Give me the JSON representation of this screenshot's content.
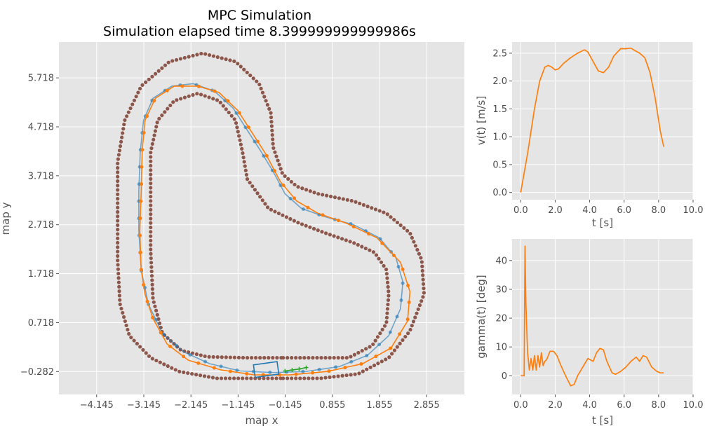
{
  "chart_data": [
    {
      "type": "line",
      "title": "MPC Simulation",
      "subtitle": "Simulation elapsed time 8.399999999999986s",
      "xlabel": "map x",
      "ylabel": "map y",
      "xlim": [
        -4.945,
        3.655
      ],
      "ylim": [
        -0.75,
        6.45
      ],
      "xticks": [
        -4.145,
        -3.145,
        -2.145,
        -1.145,
        -0.145,
        0.855,
        1.855,
        2.855
      ],
      "yticks": [
        -0.282,
        0.718,
        1.718,
        2.718,
        3.718,
        4.718,
        5.718
      ],
      "xtick_labels": [
        "−4.145",
        "−3.145",
        "−2.145",
        "−1.145",
        "−0.145",
        "0.855",
        "1.855",
        "2.855"
      ],
      "ytick_labels": [
        "−0.282",
        "0.718",
        "1.718",
        "2.718",
        "3.718",
        "4.718",
        "5.718"
      ],
      "grid": true,
      "colors": {
        "boundary": "#8c564b",
        "reference": "#1f77b4",
        "trajectory": "#ff7f0e",
        "prediction": "#2ca02c",
        "vehicle": "#1f77b4"
      },
      "series": [
        {
          "role": "outer-boundary",
          "style": "dots",
          "points": [
            [
              -0.19,
              -0.42
            ],
            [
              0.6,
              -0.42
            ],
            [
              1.4,
              -0.33
            ],
            [
              2.05,
              0.0
            ],
            [
              2.5,
              0.55
            ],
            [
              2.8,
              1.3
            ],
            [
              2.75,
              2.0
            ],
            [
              2.5,
              2.55
            ],
            [
              2.0,
              2.95
            ],
            [
              1.3,
              3.2
            ],
            [
              0.55,
              3.35
            ],
            [
              0.1,
              3.5
            ],
            [
              -0.2,
              3.75
            ],
            [
              -0.4,
              4.3
            ],
            [
              -0.45,
              5.0
            ],
            [
              -0.7,
              5.6
            ],
            [
              -1.2,
              6.05
            ],
            [
              -1.9,
              6.22
            ],
            [
              -2.6,
              6.05
            ],
            [
              -3.2,
              5.55
            ],
            [
              -3.55,
              4.85
            ],
            [
              -3.7,
              4.0
            ],
            [
              -3.7,
              3.0
            ],
            [
              -3.7,
              2.0
            ],
            [
              -3.65,
              1.1
            ],
            [
              -3.45,
              0.45
            ],
            [
              -3.0,
              0.0
            ],
            [
              -2.4,
              -0.28
            ],
            [
              -1.6,
              -0.42
            ],
            [
              -0.9,
              -0.42
            ],
            [
              -0.19,
              -0.42
            ]
          ]
        },
        {
          "role": "inner-boundary",
          "style": "dots",
          "points": [
            [
              -0.19,
              0.0
            ],
            [
              0.4,
              0.0
            ],
            [
              1.2,
              0.0
            ],
            [
              1.7,
              0.25
            ],
            [
              2.0,
              0.7
            ],
            [
              2.05,
              1.3
            ],
            [
              2.0,
              1.8
            ],
            [
              1.75,
              2.15
            ],
            [
              1.3,
              2.35
            ],
            [
              0.7,
              2.55
            ],
            [
              0.15,
              2.75
            ],
            [
              -0.5,
              3.05
            ],
            [
              -0.95,
              3.65
            ],
            [
              -1.05,
              4.2
            ],
            [
              -1.2,
              4.85
            ],
            [
              -1.55,
              5.25
            ],
            [
              -2.0,
              5.4
            ],
            [
              -2.5,
              5.25
            ],
            [
              -2.85,
              4.85
            ],
            [
              -3.0,
              4.2
            ],
            [
              -3.0,
              3.2
            ],
            [
              -3.0,
              2.2
            ],
            [
              -2.95,
              1.2
            ],
            [
              -2.75,
              0.5
            ],
            [
              -2.35,
              0.15
            ],
            [
              -1.8,
              0.02
            ],
            [
              -1.0,
              0.0
            ],
            [
              -0.19,
              0.0
            ]
          ]
        },
        {
          "name": "",
          "role": "reference-path",
          "style": "line+dots",
          "points": [
            [
              -3.2,
              1.8
            ],
            [
              -3.25,
              2.6
            ],
            [
              -3.25,
              3.4
            ],
            [
              -3.22,
              4.2
            ],
            [
              -3.15,
              4.85
            ],
            [
              -2.95,
              5.3
            ],
            [
              -2.55,
              5.55
            ],
            [
              -2.1,
              5.6
            ],
            [
              -1.65,
              5.45
            ],
            [
              -1.25,
              5.1
            ],
            [
              -0.95,
              4.65
            ],
            [
              -0.65,
              4.2
            ],
            [
              -0.4,
              3.8
            ],
            [
              -0.15,
              3.35
            ],
            [
              0.2,
              3.05
            ],
            [
              0.7,
              2.88
            ],
            [
              1.3,
              2.72
            ],
            [
              1.85,
              2.45
            ],
            [
              2.2,
              2.05
            ],
            [
              2.35,
              1.55
            ],
            [
              2.3,
              1.0
            ],
            [
              2.05,
              0.45
            ],
            [
              1.6,
              0.05
            ],
            [
              1.0,
              -0.18
            ],
            [
              0.3,
              -0.28
            ],
            [
              -0.4,
              -0.3
            ],
            [
              -1.1,
              -0.27
            ],
            [
              -1.75,
              -0.12
            ],
            [
              -2.3,
              0.12
            ],
            [
              -2.75,
              0.5
            ],
            [
              -3.05,
              1.1
            ],
            [
              -3.2,
              1.8
            ]
          ]
        },
        {
          "name": "",
          "role": "driven-trajectory",
          "style": "line+dots",
          "points": [
            [
              -3.2,
              1.8
            ],
            [
              -3.23,
              2.6
            ],
            [
              -3.2,
              3.4
            ],
            [
              -3.18,
              4.2
            ],
            [
              -3.12,
              4.85
            ],
            [
              -2.9,
              5.3
            ],
            [
              -2.5,
              5.55
            ],
            [
              -2.0,
              5.55
            ],
            [
              -1.55,
              5.42
            ],
            [
              -1.15,
              5.05
            ],
            [
              -0.85,
              4.6
            ],
            [
              -0.55,
              4.15
            ],
            [
              -0.25,
              3.6
            ],
            [
              0.1,
              3.2
            ],
            [
              0.55,
              2.95
            ],
            [
              1.15,
              2.75
            ],
            [
              1.8,
              2.45
            ],
            [
              2.3,
              1.95
            ],
            [
              2.5,
              1.35
            ],
            [
              2.45,
              0.75
            ],
            [
              2.1,
              0.2
            ],
            [
              1.5,
              -0.12
            ],
            [
              0.75,
              -0.28
            ],
            [
              -0.05,
              -0.35
            ],
            [
              -0.8,
              -0.35
            ],
            [
              -1.5,
              -0.25
            ],
            [
              -2.2,
              -0.05
            ],
            [
              -2.65,
              0.28
            ],
            [
              -2.95,
              0.8
            ],
            [
              -3.12,
              1.3
            ],
            [
              -3.2,
              1.8
            ]
          ]
        },
        {
          "name": "",
          "role": "mpc-prediction",
          "style": "line+markers",
          "points": [
            [
              -0.15,
              -0.27
            ],
            [
              0.0,
              -0.25
            ],
            [
              0.15,
              -0.23
            ],
            [
              0.3,
              -0.2
            ]
          ]
        }
      ],
      "vehicle": {
        "x": -0.55,
        "y": -0.24,
        "heading_deg": 8
      }
    },
    {
      "type": "line",
      "xlabel": "t [s]",
      "ylabel": "v(t) [m/s]",
      "xlim": [
        -0.5,
        10.0
      ],
      "ylim": [
        -0.13,
        2.7
      ],
      "xticks": [
        0,
        2,
        4,
        6,
        8,
        10
      ],
      "yticks": [
        0,
        0.5,
        1.0,
        1.5,
        2.0,
        2.5
      ],
      "xtick_labels": [
        "0.0",
        "2.0",
        "4.0",
        "6.0",
        "8.0",
        "10.0"
      ],
      "ytick_labels": [
        "0.0",
        "0.5",
        "1.0",
        "1.5",
        "2.0",
        "2.5"
      ],
      "grid": true,
      "series": [
        {
          "name": "",
          "color": "#ff7f0e",
          "x": [
            0.0,
            0.4,
            0.8,
            1.1,
            1.4,
            1.6,
            1.8,
            2.0,
            2.2,
            2.5,
            2.9,
            3.3,
            3.7,
            3.9,
            4.2,
            4.5,
            4.8,
            5.1,
            5.4,
            5.8,
            6.1,
            6.4,
            6.6,
            6.9,
            7.2,
            7.5,
            7.8,
            8.1,
            8.3
          ],
          "y": [
            0.0,
            0.7,
            1.5,
            2.0,
            2.25,
            2.28,
            2.25,
            2.2,
            2.22,
            2.32,
            2.42,
            2.5,
            2.56,
            2.52,
            2.35,
            2.18,
            2.15,
            2.25,
            2.45,
            2.58,
            2.58,
            2.59,
            2.55,
            2.5,
            2.42,
            2.15,
            1.7,
            1.1,
            0.82
          ]
        }
      ]
    },
    {
      "type": "line",
      "xlabel": "t [s]",
      "ylabel": "gamma(t) [deg]",
      "xlim": [
        -0.5,
        10.0
      ],
      "ylim": [
        -6.5,
        47.5
      ],
      "xticks": [
        0,
        2,
        4,
        6,
        8,
        10
      ],
      "yticks": [
        0,
        10,
        20,
        30,
        40
      ],
      "xtick_labels": [
        "0.0",
        "2.0",
        "4.0",
        "6.0",
        "8.0",
        "10.0"
      ],
      "ytick_labels": [
        "0",
        "10",
        "20",
        "30",
        "40"
      ],
      "grid": true,
      "series": [
        {
          "name": "",
          "color": "#ff7f0e",
          "x": [
            0.0,
            0.1,
            0.2,
            0.25,
            0.3,
            0.4,
            0.5,
            0.6,
            0.7,
            0.8,
            0.9,
            1.0,
            1.1,
            1.2,
            1.3,
            1.4,
            1.5,
            1.7,
            1.9,
            2.1,
            2.3,
            2.6,
            2.9,
            3.1,
            3.3,
            3.5,
            3.7,
            3.9,
            4.2,
            4.4,
            4.6,
            4.8,
            5.0,
            5.3,
            5.5,
            5.8,
            6.1,
            6.4,
            6.7,
            6.9,
            7.1,
            7.3,
            7.6,
            7.9,
            8.1,
            8.3
          ],
          "y": [
            0.0,
            0.0,
            0.0,
            45.0,
            25.0,
            8.0,
            2.0,
            6.0,
            2.0,
            7.0,
            2.0,
            7.0,
            3.0,
            8.0,
            3.5,
            5.0,
            5.5,
            8.5,
            8.5,
            7.0,
            4.0,
            0.0,
            -3.5,
            -3.0,
            0.0,
            2.0,
            4.0,
            6.0,
            5.0,
            8.0,
            9.5,
            9.0,
            5.0,
            1.0,
            0.5,
            1.5,
            3.0,
            5.0,
            6.5,
            5.0,
            7.0,
            6.5,
            3.0,
            1.5,
            1.0,
            1.0
          ]
        }
      ]
    }
  ]
}
